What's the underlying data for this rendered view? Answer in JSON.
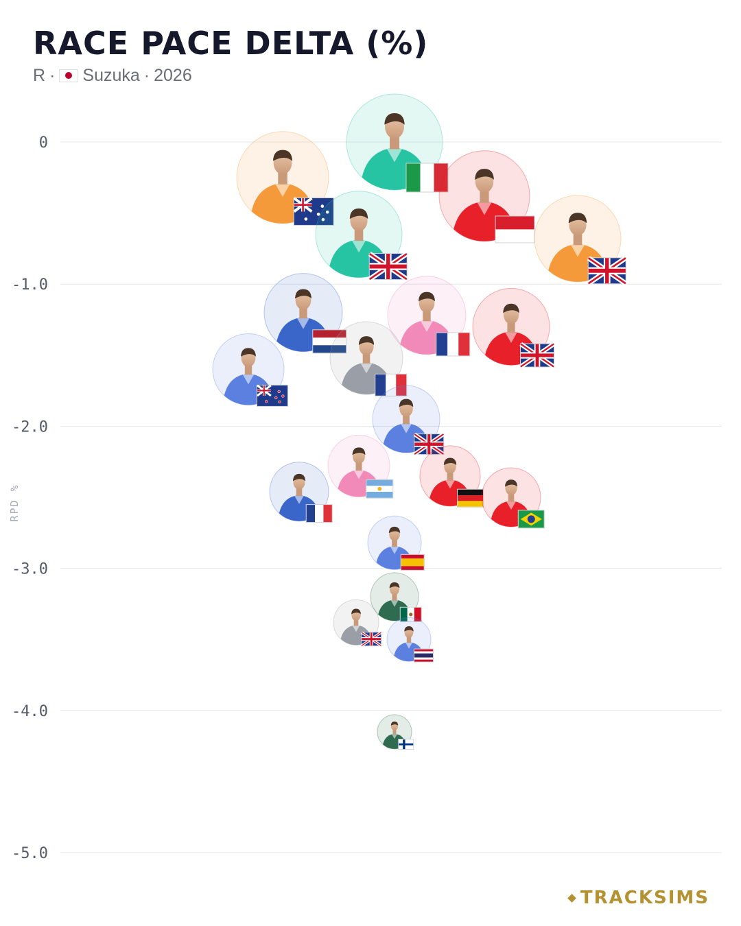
{
  "header": {
    "title": "RACE PACE DELTA (%)",
    "session": "R",
    "separator": "·",
    "circuit": "Suzuka",
    "year": "2026",
    "circuit_flag_icon": "japan-flag-icon"
  },
  "brand": {
    "label": "TRACKSIMS",
    "color": "#b49232"
  },
  "chart_data": {
    "type": "scatter",
    "title": "RACE PACE DELTA (%)",
    "ylabel": "RPD %",
    "xlabel": "",
    "ylim": [
      -5.0,
      0
    ],
    "yticks": [
      0,
      -1.0,
      -2.0,
      -3.0,
      -4.0,
      -5.0
    ],
    "ytick_labels": [
      "0",
      "-1.0",
      "-2.0",
      "-3.0",
      "-4.0",
      "-5.0"
    ],
    "grid": true,
    "axis_gradient": [
      "#3dbf7a",
      "#4a8fe0",
      "#e0b13a",
      "#e0555e"
    ],
    "points": [
      {
        "y": 0.0,
        "x": 575,
        "team_color": "#27c4a3",
        "nationality": "Italy"
      },
      {
        "y": -0.25,
        "x": 412,
        "team_color": "#f59a3b",
        "nationality": "Australia"
      },
      {
        "y": -0.38,
        "x": 706,
        "team_color": "#e8202a",
        "nationality": "Monaco"
      },
      {
        "y": -0.65,
        "x": 523,
        "team_color": "#27c4a3",
        "nationality": "United Kingdom"
      },
      {
        "y": -0.68,
        "x": 842,
        "team_color": "#f59a3b",
        "nationality": "United Kingdom"
      },
      {
        "y": -1.2,
        "x": 442,
        "team_color": "#3b66c9",
        "nationality": "Netherlands"
      },
      {
        "y": -1.22,
        "x": 622,
        "team_color": "#f28ab9",
        "nationality": "France"
      },
      {
        "y": -1.3,
        "x": 745,
        "team_color": "#e8202a",
        "nationality": "United Kingdom"
      },
      {
        "y": -1.52,
        "x": 534,
        "team_color": "#9a9ea6",
        "nationality": "France"
      },
      {
        "y": -1.6,
        "x": 362,
        "team_color": "#5b80e0",
        "nationality": "New Zealand"
      },
      {
        "y": -1.95,
        "x": 592,
        "team_color": "#5b80e0",
        "nationality": "United Kingdom"
      },
      {
        "y": -2.28,
        "x": 523,
        "team_color": "#f28ab9",
        "nationality": "Argentina"
      },
      {
        "y": -2.35,
        "x": 656,
        "team_color": "#e8202a",
        "nationality": "Germany"
      },
      {
        "y": -2.46,
        "x": 436,
        "team_color": "#3b66c9",
        "nationality": "France"
      },
      {
        "y": -2.5,
        "x": 745,
        "team_color": "#e8202a",
        "nationality": "Brazil"
      },
      {
        "y": -2.82,
        "x": 575,
        "team_color": "#5b80e0",
        "nationality": "Spain"
      },
      {
        "y": -3.2,
        "x": 575,
        "team_color": "#2e6b4f",
        "nationality": "Mexico"
      },
      {
        "y": -3.38,
        "x": 519,
        "team_color": "#9a9ea6",
        "nationality": "United Kingdom"
      },
      {
        "y": -3.5,
        "x": 596,
        "team_color": "#5b80e0",
        "nationality": "Thailand"
      },
      {
        "y": -4.15,
        "x": 575,
        "team_color": "#2e6b4f",
        "nationality": "Finland"
      }
    ]
  }
}
